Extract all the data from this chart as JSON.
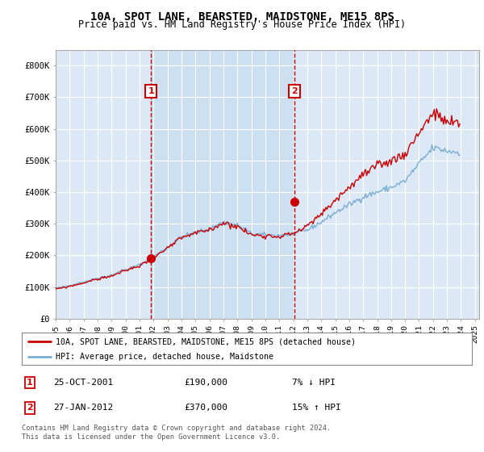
{
  "title": "10A, SPOT LANE, BEARSTED, MAIDSTONE, ME15 8PS",
  "subtitle": "Price paid vs. HM Land Registry's House Price Index (HPI)",
  "background_color": "#ffffff",
  "plot_background": "#dce8f5",
  "shaded_region_color": "#c8ddf0",
  "grid_color": "#ffffff",
  "ylim": [
    0,
    850000
  ],
  "yticks": [
    0,
    100000,
    200000,
    300000,
    400000,
    500000,
    600000,
    700000,
    800000
  ],
  "ytick_labels": [
    "£0",
    "£100K",
    "£200K",
    "£300K",
    "£400K",
    "£500K",
    "£600K",
    "£700K",
    "£800K"
  ],
  "sale1_year": 2001.82,
  "sale1_price": 190000,
  "sale1_label": "1",
  "sale2_year": 2012.07,
  "sale2_price": 370000,
  "sale2_label": "2",
  "hpi_color": "#7aadd4",
  "price_color": "#cc0000",
  "vline_color": "#cc0000",
  "legend_house_label": "10A, SPOT LANE, BEARSTED, MAIDSTONE, ME15 8PS (detached house)",
  "legend_hpi_label": "HPI: Average price, detached house, Maidstone",
  "table_row1": [
    "1",
    "25-OCT-2001",
    "£190,000",
    "7% ↓ HPI"
  ],
  "table_row2": [
    "2",
    "27-JAN-2012",
    "£370,000",
    "15% ↑ HPI"
  ],
  "footnote": "Contains HM Land Registry data © Crown copyright and database right 2024.\nThis data is licensed under the Open Government Licence v3.0.",
  "xlim_start": 1995,
  "xlim_end": 2025.3
}
